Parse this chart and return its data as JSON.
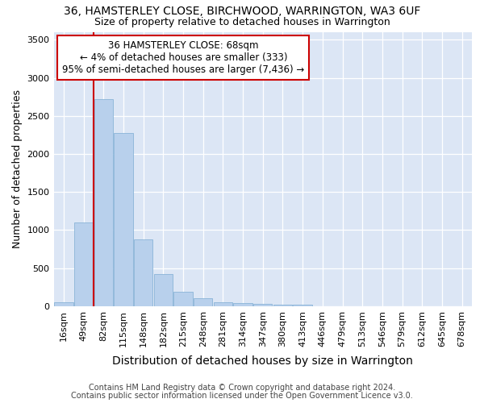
{
  "title_line1": "36, HAMSTERLEY CLOSE, BIRCHWOOD, WARRINGTON, WA3 6UF",
  "title_line2": "Size of property relative to detached houses in Warrington",
  "xlabel": "Distribution of detached houses by size in Warrington",
  "ylabel": "Number of detached properties",
  "footer_line1": "Contains HM Land Registry data © Crown copyright and database right 2024.",
  "footer_line2": "Contains public sector information licensed under the Open Government Licence v3.0.",
  "annotation_line1": "36 HAMSTERLEY CLOSE: 68sqm",
  "annotation_line2": "← 4% of detached houses are smaller (333)",
  "annotation_line3": "95% of semi-detached houses are larger (7,436) →",
  "categories": [
    "16sqm",
    "49sqm",
    "82sqm",
    "115sqm",
    "148sqm",
    "182sqm",
    "215sqm",
    "248sqm",
    "281sqm",
    "314sqm",
    "347sqm",
    "380sqm",
    "413sqm",
    "446sqm",
    "479sqm",
    "513sqm",
    "546sqm",
    "579sqm",
    "612sqm",
    "645sqm",
    "678sqm"
  ],
  "values": [
    50,
    1100,
    2720,
    2280,
    880,
    420,
    185,
    100,
    55,
    40,
    35,
    20,
    20,
    0,
    0,
    0,
    0,
    0,
    0,
    0,
    0
  ],
  "bar_color": "#b8d0ec",
  "bar_edge_color": "#8ab4d8",
  "vline_color": "#cc0000",
  "vline_x": 1.5,
  "background_color": "#dce6f5",
  "ylim": [
    0,
    3600
  ],
  "yticks": [
    0,
    500,
    1000,
    1500,
    2000,
    2500,
    3000,
    3500
  ],
  "title1_fontsize": 10,
  "title2_fontsize": 9,
  "ylabel_fontsize": 9,
  "xlabel_fontsize": 10,
  "tick_fontsize": 8,
  "footer_fontsize": 7,
  "annot_fontsize": 8.5
}
